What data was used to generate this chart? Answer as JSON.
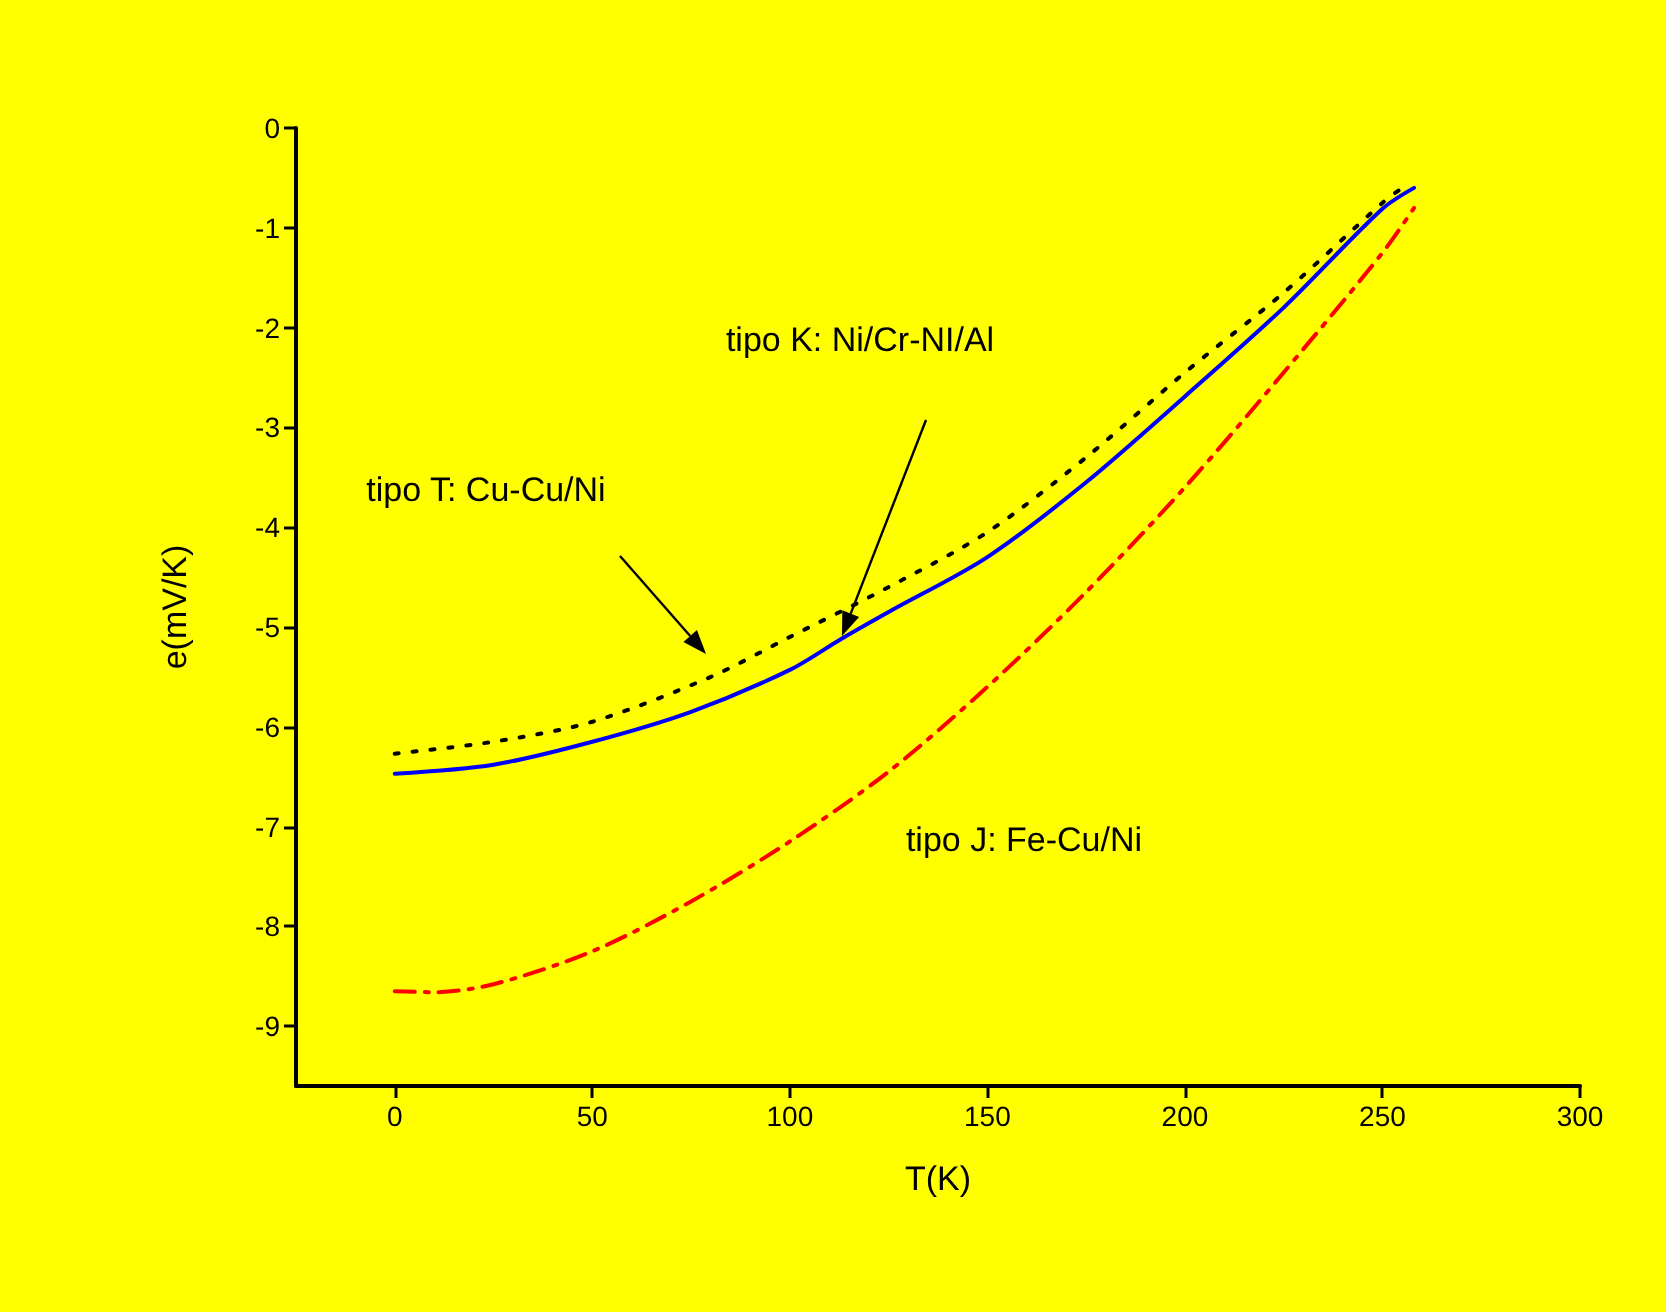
{
  "chart_data": {
    "type": "line",
    "xlabel": "T(K)",
    "ylabel": "e(mV/K)",
    "xlim": [
      -25,
      300
    ],
    "xticks": [
      0,
      50,
      100,
      150,
      200,
      250,
      300
    ],
    "ylim": [
      -9.6,
      0
    ],
    "yticks": [
      0,
      -1,
      -2,
      -3,
      -4,
      -5,
      -6,
      -7,
      -8,
      -9
    ],
    "grid": false,
    "marker": "none",
    "series": [
      {
        "color": "#000000",
        "line_style": "dotted",
        "x": [
          0,
          25,
          50,
          80,
          100,
          125,
          150,
          175,
          200,
          225,
          250,
          255
        ],
        "values": [
          -6.27,
          -6.15,
          -5.95,
          -5.5,
          -5.1,
          -4.6,
          -4.05,
          -3.3,
          -2.45,
          -1.65,
          -0.75,
          -0.6
        ]
      },
      {
        "color": "#0000ff",
        "line_style": "solid",
        "x": [
          0,
          25,
          50,
          75,
          100,
          113,
          125,
          150,
          175,
          200,
          225,
          250,
          258
        ],
        "values": [
          -6.47,
          -6.38,
          -6.15,
          -5.85,
          -5.43,
          -5.12,
          -4.85,
          -4.3,
          -3.55,
          -2.69,
          -1.8,
          -0.81,
          -0.6
        ]
      },
      {
        "color": "#ff0000",
        "line_style": "dashed",
        "x": [
          0,
          10,
          25,
          50,
          75,
          100,
          125,
          150,
          175,
          200,
          225,
          250,
          258
        ],
        "values": [
          -8.65,
          -8.66,
          -8.58,
          -8.25,
          -7.75,
          -7.15,
          -6.45,
          -5.6,
          -4.65,
          -3.6,
          -2.45,
          -1.25,
          -0.8
        ]
      }
    ],
    "annotations": [
      "tipo T: Cu-Cu/Ni",
      "tipo K: Ni/Cr-NI/Al",
      "tipo J: Fe-Cu/Ni"
    ]
  }
}
